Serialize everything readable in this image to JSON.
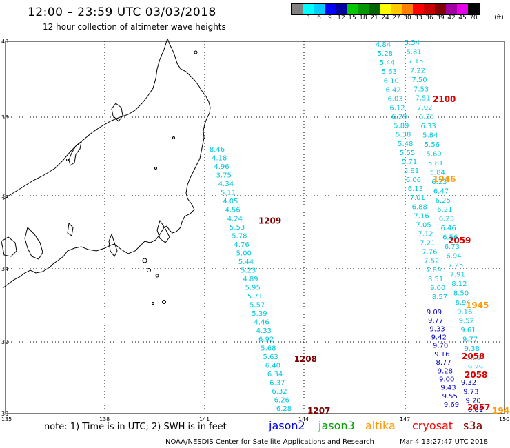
{
  "header": {
    "title": "12:00 – 23:59 UTC 03/03/2018",
    "subtitle": "12 hour collection of altimeter wave heights"
  },
  "color_scale": {
    "unit": "(ft)",
    "bins": [
      {
        "label": "",
        "color": "#808080"
      },
      {
        "label": "3",
        "color": "#00ffff"
      },
      {
        "label": "6",
        "color": "#00cdff"
      },
      {
        "label": "9",
        "color": "#0000ff"
      },
      {
        "label": "12",
        "color": "#0000a0"
      },
      {
        "label": "15",
        "color": "#00c800"
      },
      {
        "label": "18",
        "color": "#009600"
      },
      {
        "label": "21",
        "color": "#006400"
      },
      {
        "label": "24",
        "color": "#ffff00"
      },
      {
        "label": "27",
        "color": "#ffc800"
      },
      {
        "label": "30",
        "color": "#ff8000"
      },
      {
        "label": "33",
        "color": "#ff0000"
      },
      {
        "label": "36",
        "color": "#c80000"
      },
      {
        "label": "39",
        "color": "#800000"
      },
      {
        "label": "42",
        "color": "#a000a0"
      },
      {
        "label": "45",
        "color": "#e800e8"
      },
      {
        "label": "70",
        "color": "#000000"
      }
    ]
  },
  "axes": {
    "lat_labels": [
      "40",
      "38",
      "36",
      "34",
      "32",
      "30"
    ],
    "lon_labels": [
      "135",
      "138",
      "141",
      "144",
      "147",
      "150"
    ]
  },
  "colors": {
    "cyan": "#00c8dc",
    "blue": "#0000c8",
    "red": "#dd0000",
    "darkred": "#800000",
    "orange": "#ff9900",
    "green": "#00a000"
  },
  "tracks": [
    {
      "id": "track-A",
      "color": "cyan",
      "values": [
        "8.46",
        "4.18",
        "4.96",
        "3.75",
        "4.34",
        "5.11",
        "4.05",
        "4.56",
        "4.24",
        "5.53",
        "5.78",
        "4.76",
        "5.00",
        "5.44",
        "5.23",
        "4.89",
        "5.95",
        "5.71",
        "5.57",
        "5.39",
        "4.46",
        "4.33",
        "6.92",
        "5.68",
        "5.63",
        "6.40",
        "6.34",
        "6.37",
        "6.32",
        "6.26",
        "6.28"
      ],
      "labels": [
        {
          "text": "1209",
          "color": "darkred",
          "row": 8
        },
        {
          "text": "1208",
          "color": "darkred",
          "row": 24
        },
        {
          "text": "1207",
          "color": "darkred",
          "row": 30
        }
      ]
    },
    {
      "id": "track-B",
      "color": "cyan",
      "values": [
        "4.84",
        "5.28",
        "5.44",
        "5.63",
        "6.10",
        "6.42",
        "6.03",
        "6.12",
        "6.29",
        "5.89",
        "5.38",
        "5.48",
        "5.55",
        "5.71",
        "5.81",
        "6.06",
        "6.13",
        "7.01",
        "6.88",
        "7.16",
        "7.05",
        "7.12",
        "7.21",
        "7.76",
        "7.52",
        "7.89",
        "8.51",
        "9.00",
        "8.57"
      ]
    },
    {
      "id": "track-C",
      "color": "cyan",
      "values": [
        "5.54",
        "5.81",
        "7.15",
        "7.22",
        "7.50",
        "7.53",
        "7.51",
        "7.02",
        "6.35",
        "6.33",
        "5.84",
        "5.56",
        "5.69",
        "5.81",
        "5.84",
        "6.23",
        "6.47",
        "6.25",
        "6.21",
        "6.23",
        "6.46",
        "6.56",
        "6.73",
        "6.94",
        "7.25",
        "7.91",
        "8.12",
        "8.50",
        "8.94",
        "9.16",
        "9.52",
        "9.61",
        "9.77",
        "9.38",
        "9.27",
        "9.29"
      ]
    },
    {
      "id": "track-D",
      "color": "blue",
      "values": [
        "9.09",
        "9.77",
        "9.33",
        "9.42",
        "9.70",
        "9.16",
        "8.77",
        "9.28",
        "9.00",
        "9.43",
        "9.55",
        "9.69"
      ]
    },
    {
      "id": "track-E",
      "color": "blue",
      "values": [
        "9.32",
        "9.73",
        "9.20",
        "8.81"
      ]
    }
  ],
  "time_labels": [
    {
      "text": "2100",
      "color": "red"
    },
    {
      "text": "1946",
      "color": "orange"
    },
    {
      "text": "2059",
      "color": "red"
    },
    {
      "text": "1945",
      "color": "orange"
    },
    {
      "text": "2058",
      "color": "red"
    },
    {
      "text": "2058",
      "color": "red"
    },
    {
      "text": "2057",
      "color": "red"
    },
    {
      "text": "194",
      "color": "orange"
    }
  ],
  "footer": {
    "note": "note:  1) Time is in UTC;  2) SWH is in feet",
    "satellites": [
      {
        "name": "jason2",
        "color": "#0000ff"
      },
      {
        "name": "jason3",
        "color": "#00a000"
      },
      {
        "name": "altika",
        "color": "#ff9900"
      },
      {
        "name": "cryosat",
        "color": "#ff0000"
      },
      {
        "name": "s3a",
        "color": "#800000"
      }
    ],
    "credit": "NOAA/NESDIS Center for Satellite Applications and Research",
    "stamp": "Mar  4 13:27:47 UTC 2018"
  }
}
